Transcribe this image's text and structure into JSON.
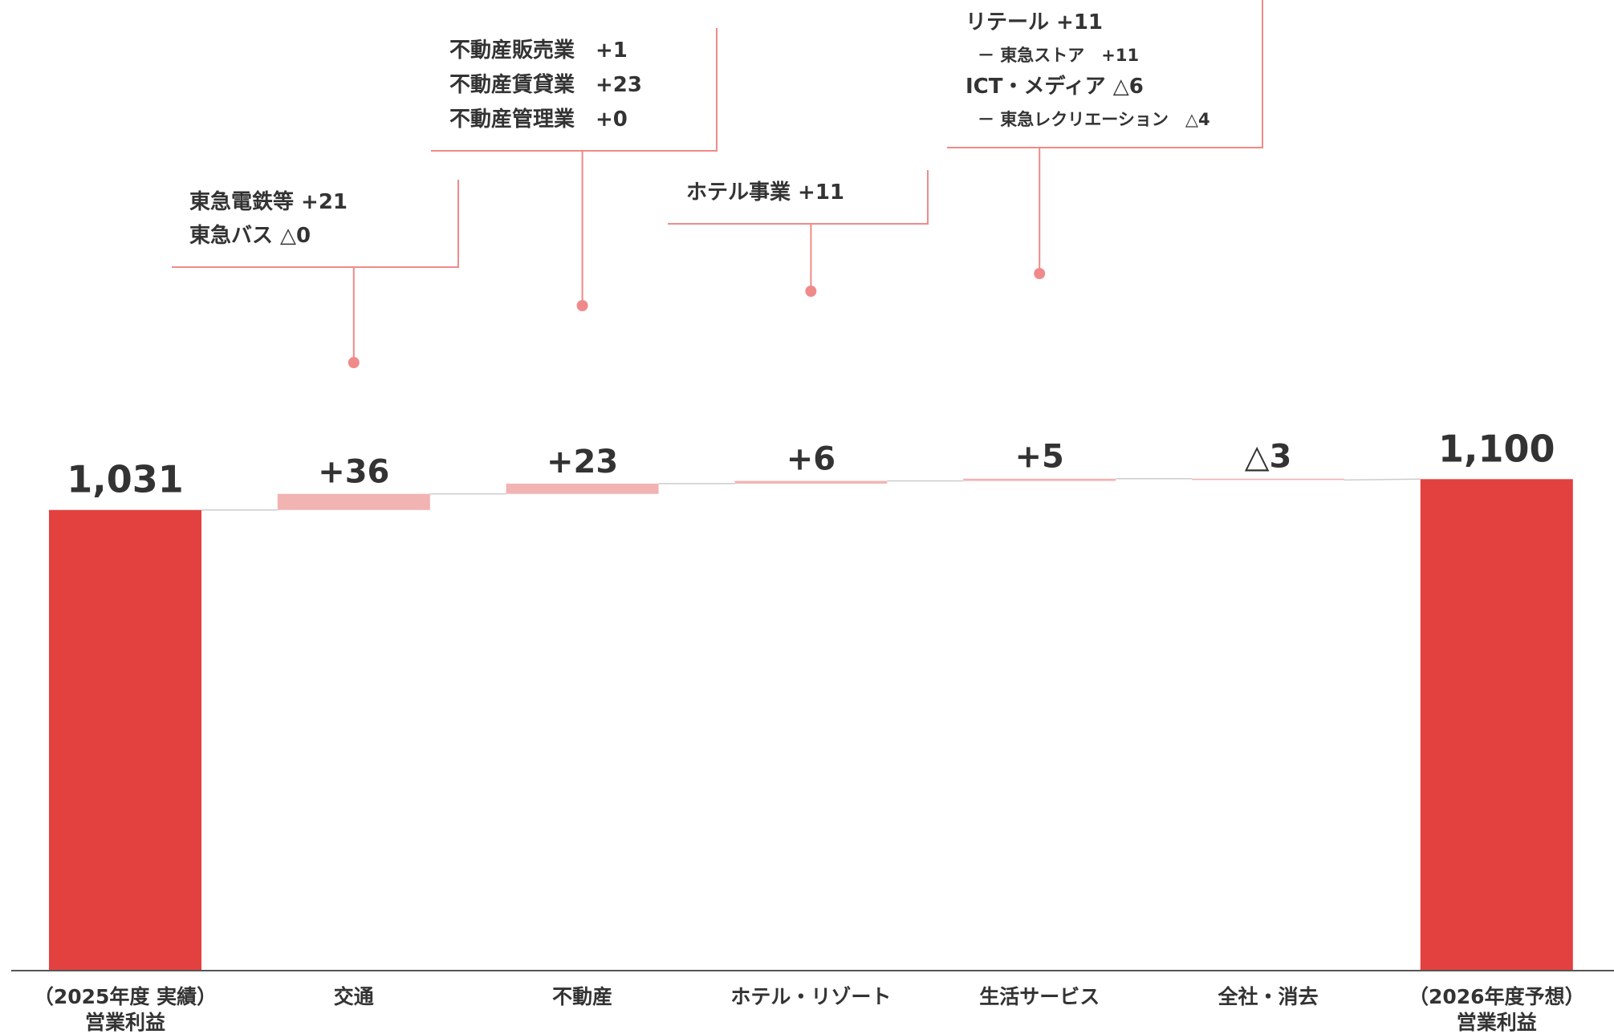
{
  "colors": {
    "total": "#e34040",
    "delta": "#f2b3b3",
    "callout": "#f08a8a",
    "axis": "#555555",
    "connector": "#cccccc"
  },
  "chart_data": {
    "type": "bar",
    "subtype": "waterfall",
    "units_hint": "operating profit",
    "categories": [
      [
        "（2025年度 実績）",
        "営業利益"
      ],
      [
        "交通"
      ],
      [
        "不動産"
      ],
      [
        "ホテル・リゾート"
      ],
      [
        "生活サービス"
      ],
      [
        "全社・消去"
      ],
      [
        "（2026年度予想）",
        "営業利益"
      ]
    ],
    "values": [
      1031,
      36,
      23,
      6,
      5,
      -3,
      1100
    ],
    "kinds": [
      "total",
      "delta",
      "delta",
      "delta",
      "delta",
      "delta",
      "total"
    ],
    "value_labels": [
      "1,031",
      "+36",
      "+23",
      "+6",
      "+5",
      "△3",
      "1,100"
    ],
    "callouts": [
      {
        "bar": 1,
        "lines": [
          {
            "text": "東急電鉄等 +21",
            "style": "main"
          },
          {
            "text": "東急バス △0",
            "style": "main"
          }
        ]
      },
      {
        "bar": 2,
        "lines": [
          {
            "text": "不動産販売業　+1",
            "style": "main"
          },
          {
            "text": "不動産賃貸業　+23",
            "style": "main"
          },
          {
            "text": "不動産管理業　+0",
            "style": "main"
          }
        ]
      },
      {
        "bar": 3,
        "lines": [
          {
            "text": "ホテル事業 +11",
            "style": "main"
          }
        ]
      },
      {
        "bar": 4,
        "lines": [
          {
            "text": "リテール +11",
            "style": "main"
          },
          {
            "text": "－ 東急ストア　+11",
            "style": "sub"
          },
          {
            "text": "ICT・メディア △6",
            "style": "main"
          },
          {
            "text": "－ 東急レクリエーション　△4",
            "style": "sub"
          }
        ]
      }
    ]
  }
}
